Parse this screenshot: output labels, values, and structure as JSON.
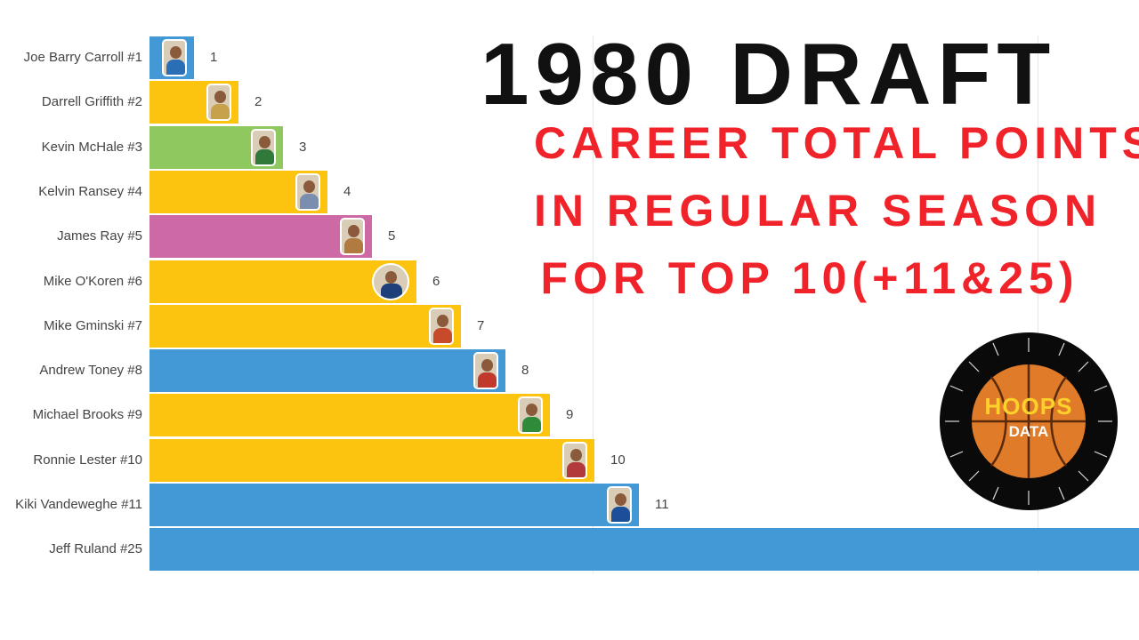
{
  "title": {
    "line1": "1980 DRAFT",
    "line2": "CAREER TOTAL POINTS",
    "line3": "IN REGULAR SEASON",
    "line4": "FOR TOP 10(+11&25)"
  },
  "logo": {
    "word1": "HOOPS",
    "word2": "DATA"
  },
  "colors": {
    "yellow": "#fcc40f",
    "blue": "#4398d6",
    "green": "#8ec85e",
    "pink": "#cd6aa6",
    "title_red": "#f0232b"
  },
  "chart_data": {
    "type": "bar",
    "orientation": "horizontal",
    "categories": [
      "Joe Barry Carroll #1",
      "Darrell Griffith #2",
      "Kevin McHale #3",
      "Kelvin Ransey #4",
      "James Ray #5",
      "Mike O'Koren #6",
      "Mike Gminski #7",
      "Andrew Toney #8",
      "Michael Brooks #9",
      "Ronnie Lester #10",
      "Kiki Vandeweghe #11",
      "Jeff Ruland #25"
    ],
    "values": [
      1,
      2,
      3,
      4,
      5,
      6,
      7,
      8,
      9,
      10,
      11,
      22.3
    ],
    "value_labels": [
      "1",
      "2",
      "3",
      "4",
      "5",
      "6",
      "7",
      "8",
      "9",
      "10",
      "11",
      ""
    ],
    "bar_colors": [
      "blue",
      "yellow",
      "green",
      "yellow",
      "pink",
      "yellow",
      "yellow",
      "blue",
      "yellow",
      "yellow",
      "blue",
      "blue"
    ],
    "thumb_colors": [
      "#2a6fb5",
      "#c8a24a",
      "#2f7a3a",
      "#7a8fb0",
      "#b07a40",
      "#1f3f7a",
      "#c74a2a",
      "#c0392b",
      "#2e8b3a",
      "#b23a3a",
      "#1c4f9a",
      ""
    ],
    "xlim": [
      0,
      22.3
    ],
    "grid": true
  }
}
